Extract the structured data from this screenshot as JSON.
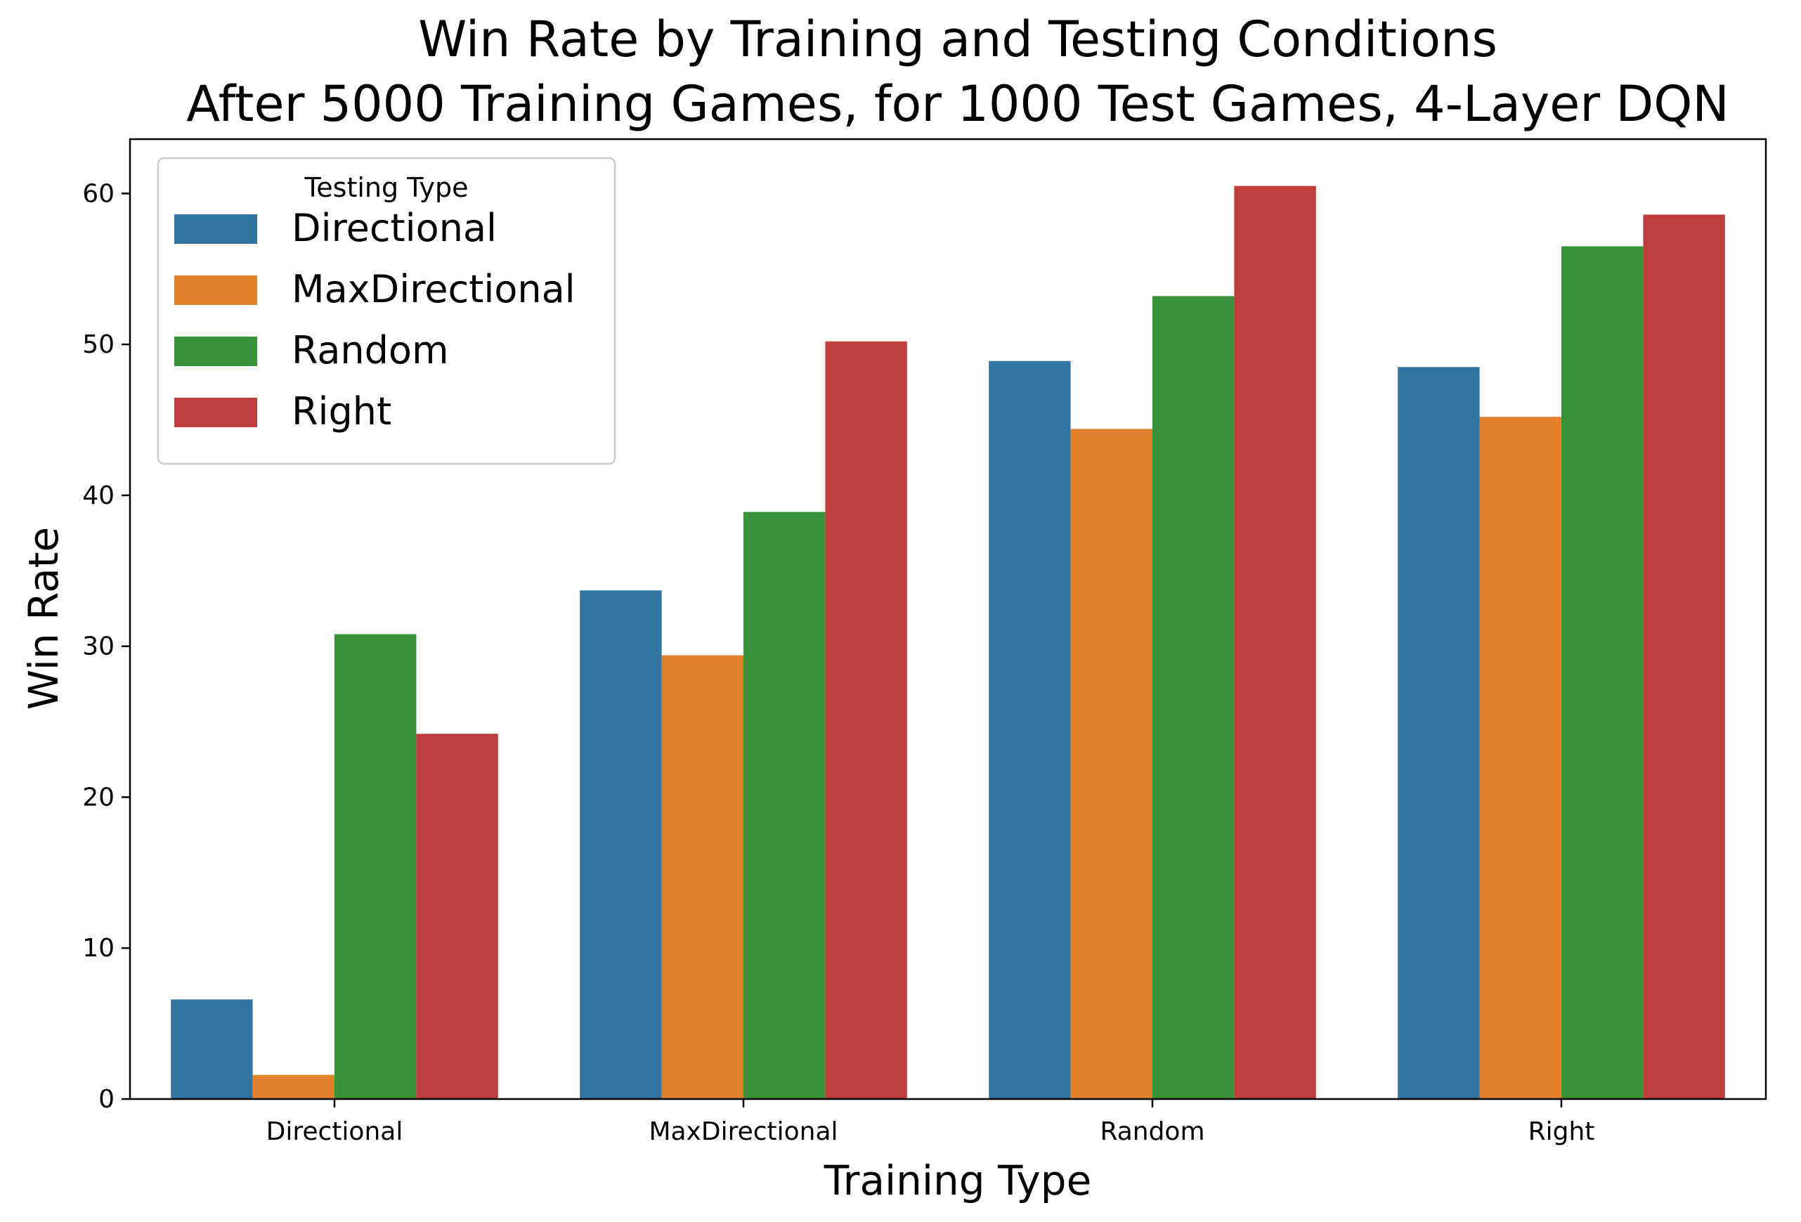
{
  "chart_data": {
    "type": "bar",
    "title_line1": "Win Rate by Training and Testing Conditions",
    "title_line2": "After 5000 Training Games, for 1000 Test Games, 4-Layer DQN",
    "xlabel": "Training Type",
    "ylabel": "Win Rate",
    "categories": [
      "Directional",
      "MaxDirectional",
      "Random",
      "Right"
    ],
    "ylim": [
      0,
      63.6
    ],
    "yticks": [
      0,
      10,
      20,
      30,
      40,
      50,
      60
    ],
    "grid": false,
    "legend": {
      "title": "Testing Type",
      "placement": "top-left"
    },
    "series": [
      {
        "name": "Directional",
        "color": "#3274a1",
        "values": [
          6.6,
          33.7,
          48.9,
          48.5
        ]
      },
      {
        "name": "MaxDirectional",
        "color": "#e1812c",
        "values": [
          1.6,
          29.4,
          44.4,
          45.2
        ]
      },
      {
        "name": "Random",
        "color": "#3a923a",
        "values": [
          30.8,
          38.9,
          53.2,
          56.5
        ]
      },
      {
        "name": "Right",
        "color": "#c03d3e",
        "values": [
          24.2,
          50.2,
          60.5,
          58.6
        ]
      }
    ]
  }
}
